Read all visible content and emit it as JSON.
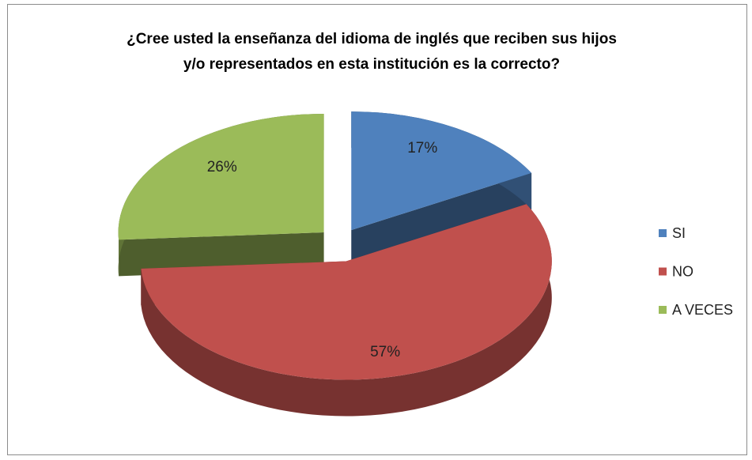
{
  "chart_data": {
    "type": "pie3d",
    "title": [
      "¿Cree usted la enseñanza del idioma de inglés que reciben sus hijos",
      "y/o representados en esta institución es la correcto?"
    ],
    "categories": [
      "SI",
      "NO",
      "A VECES"
    ],
    "values": [
      17,
      57,
      26
    ],
    "value_labels": [
      "17%",
      "57%",
      "26%"
    ],
    "colors": [
      "#4f81bd",
      "#c0504d",
      "#9bbb59"
    ],
    "legend": "right"
  }
}
